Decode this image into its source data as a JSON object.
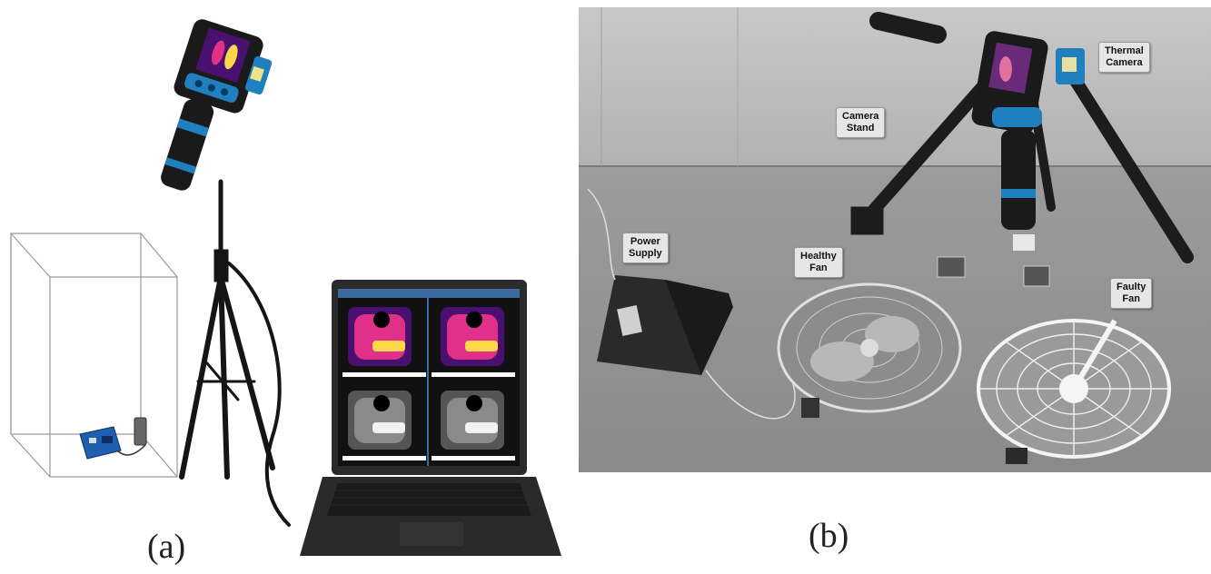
{
  "captions": {
    "a": "(a)",
    "b": "(b)"
  },
  "labels": {
    "thermal_camera": "Thermal\nCamera",
    "camera_stand": "Camera\nStand",
    "power_supply": "Power\nSupply",
    "healthy_fan": "Healthy\nFan",
    "faulty_fan": "Faulty\nFan"
  },
  "colors": {
    "camera_body": "#1f7fbf",
    "camera_dark": "#1a1a1a",
    "laptop_body": "#2b2b2b",
    "thermal_hot": "#ffd84a",
    "thermal_mid": "#e0308a",
    "thermal_cool": "#4a1070",
    "arduino": "#1f5fb0"
  },
  "icons": [
    "thermal-camera-icon",
    "tripod-icon",
    "laptop-icon",
    "enclosure-box-icon",
    "arduino-board-icon",
    "fan-icon"
  ]
}
